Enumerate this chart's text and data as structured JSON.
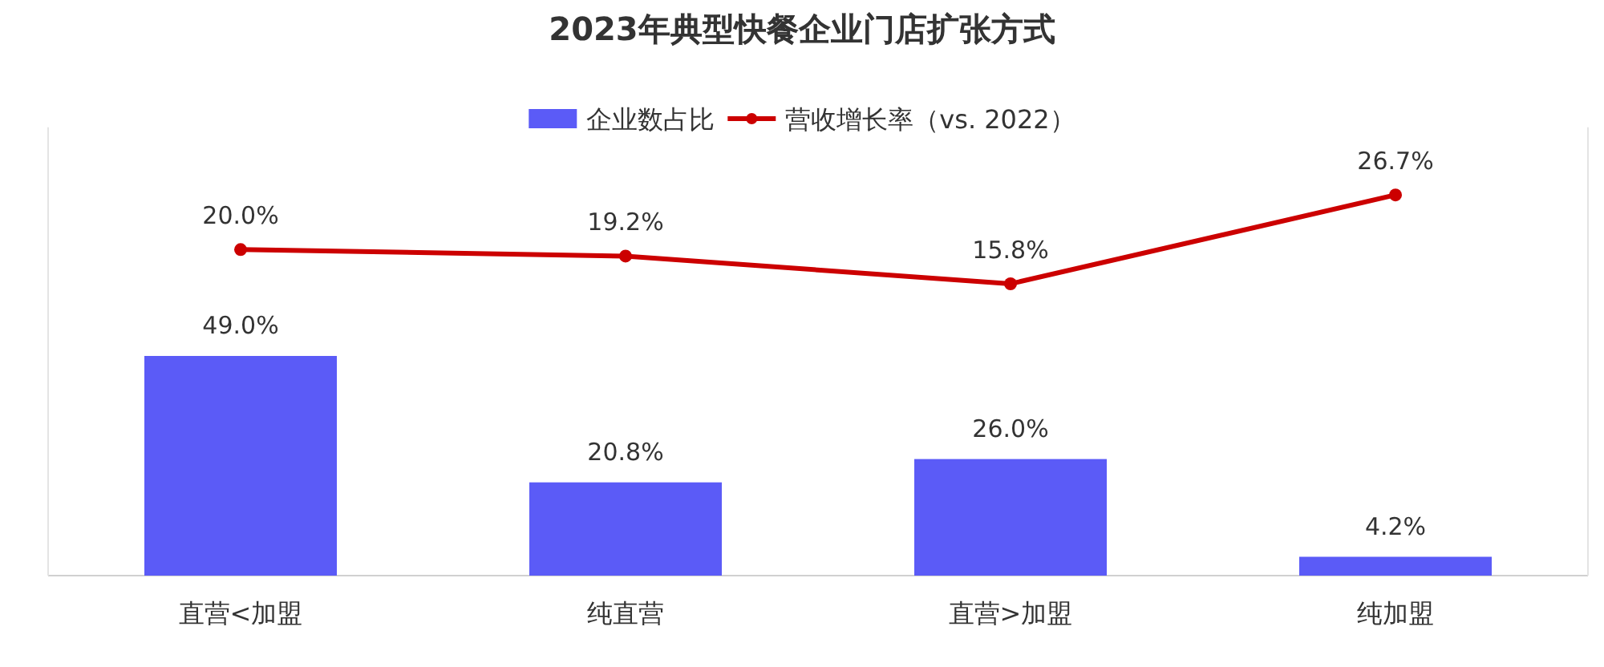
{
  "chart_data": {
    "type": "bar",
    "title": "2023年典型快餐企业门店扩张方式",
    "categories": [
      "直营<加盟",
      "纯直营",
      "直营>加盟",
      "纯加盟"
    ],
    "series": [
      {
        "name": "企业数占比",
        "color": "#5b5bf7",
        "values": [
          49.0,
          20.8,
          26.0,
          4.2
        ],
        "value_labels": [
          "49.0%",
          "20.8%",
          "26.0%",
          "4.2%"
        ]
      },
      {
        "name": "营收增长率（vs. 2022）",
        "type": "line",
        "axis": "y2",
        "color": "#cc0000",
        "values": [
          20.0,
          19.2,
          15.8,
          26.7
        ],
        "value_labels": [
          "20.0%",
          "19.2%",
          "15.8%",
          "26.7%"
        ]
      }
    ],
    "ylim": [
      0,
      100
    ],
    "y2lim": [
      -20,
      35
    ],
    "legend": "top",
    "marker": "circle",
    "tick_labels": "x"
  }
}
